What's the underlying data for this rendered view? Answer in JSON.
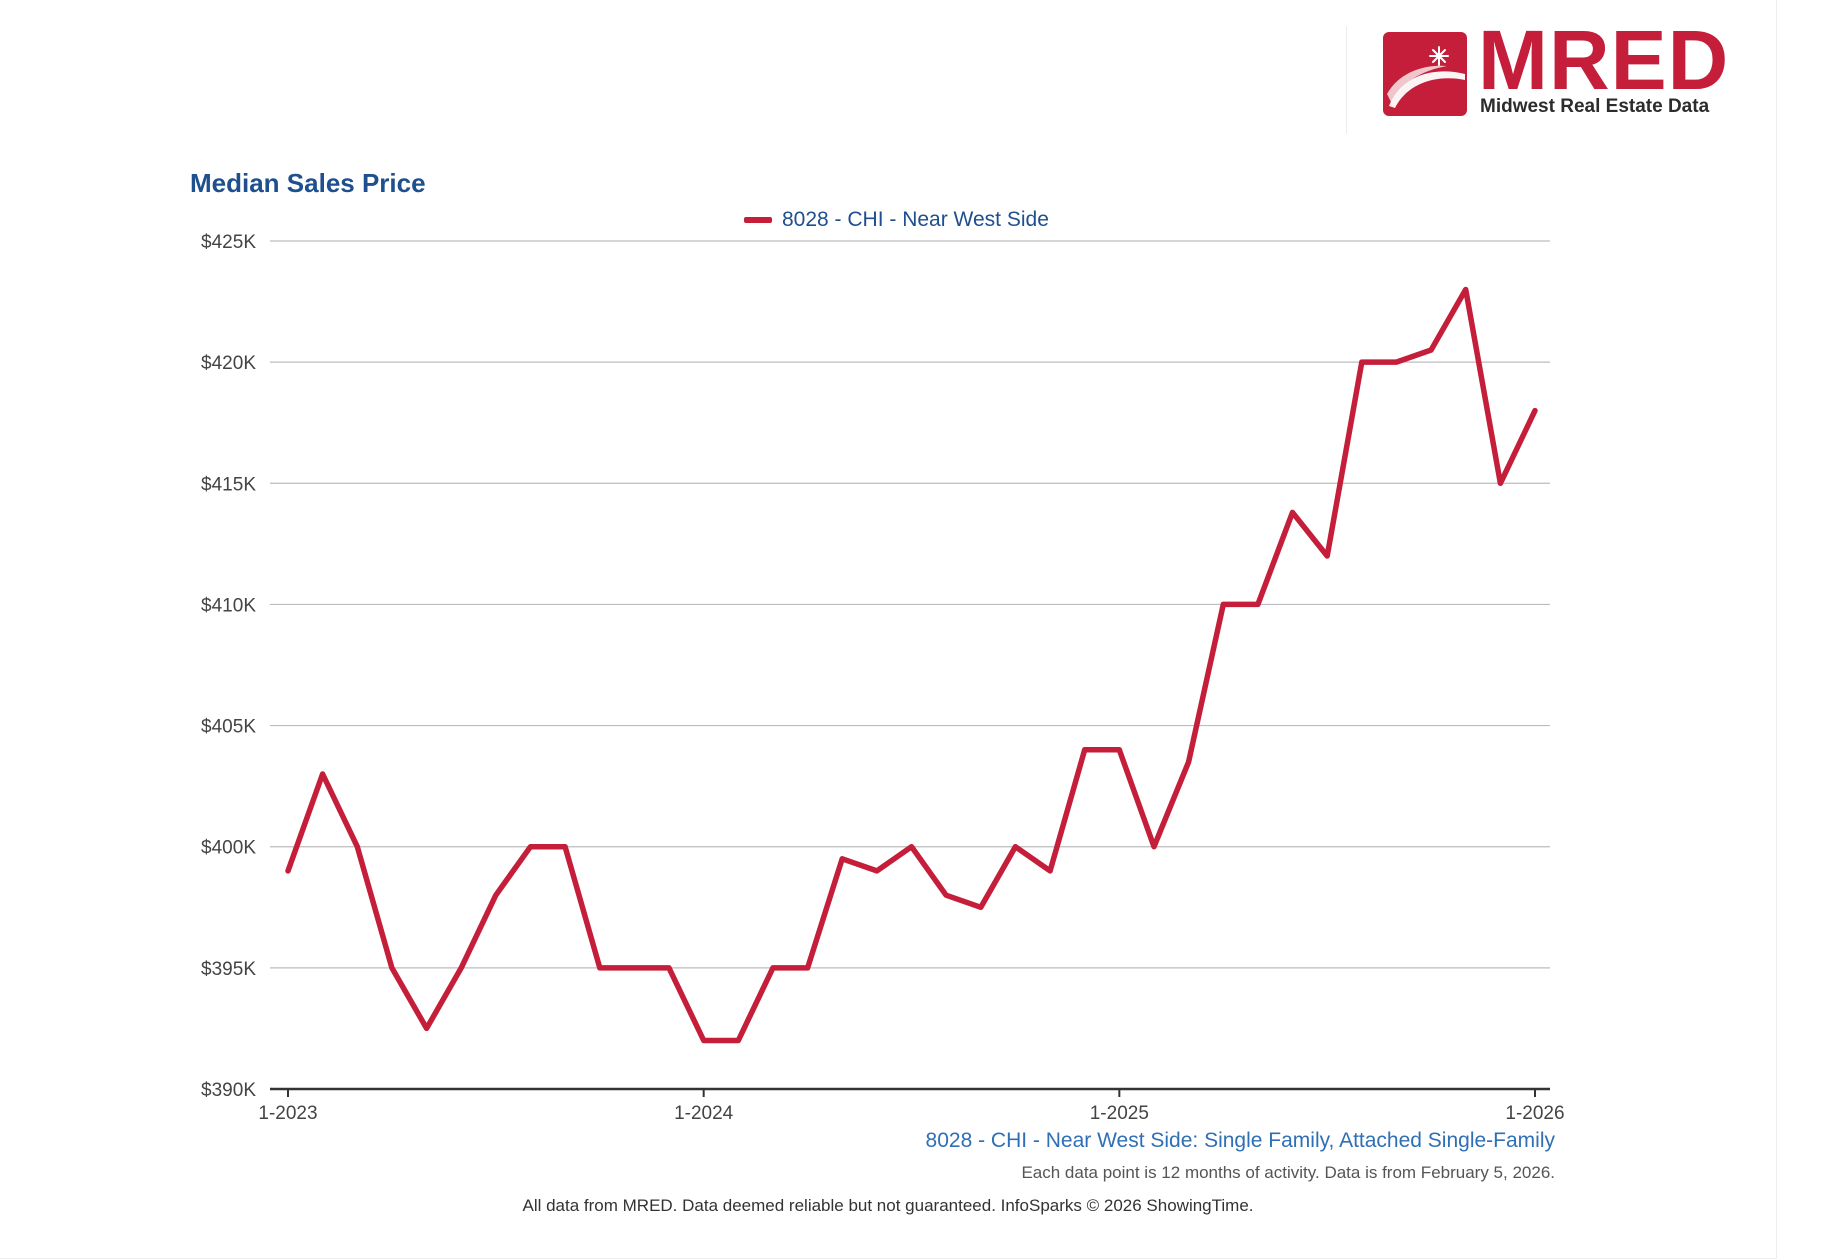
{
  "brand": {
    "logo_letters": "MRED",
    "logo_tagline": "Midwest Real Estate Data",
    "colors": {
      "brand_red": "#c41e3a",
      "title_blue": "#1e4f8e",
      "caption_blue": "#2f6fb5"
    }
  },
  "chart_data": {
    "type": "line",
    "title": "Median Sales Price",
    "xlabel": "",
    "ylabel": "",
    "legend": "top-center",
    "grid": true,
    "ylim": [
      390,
      425
    ],
    "y_ticks": [
      390,
      395,
      400,
      405,
      410,
      415,
      420,
      425
    ],
    "y_tick_labels": [
      "$390K",
      "$395K",
      "$400K",
      "$405K",
      "$410K",
      "$415K",
      "$420K",
      "$425K"
    ],
    "x_tick_labels": [
      "1-2023",
      "1-2024",
      "1-2025",
      "1-2026"
    ],
    "x": [
      "1-2023",
      "2-2023",
      "3-2023",
      "4-2023",
      "5-2023",
      "6-2023",
      "7-2023",
      "8-2023",
      "9-2023",
      "10-2023",
      "11-2023",
      "12-2023",
      "1-2024",
      "2-2024",
      "3-2024",
      "4-2024",
      "5-2024",
      "6-2024",
      "7-2024",
      "8-2024",
      "9-2024",
      "10-2024",
      "11-2024",
      "12-2024",
      "1-2025",
      "2-2025",
      "3-2025",
      "4-2025",
      "5-2025",
      "6-2025",
      "7-2025",
      "8-2025",
      "9-2025",
      "10-2025",
      "11-2025",
      "12-2025",
      "1-2026"
    ],
    "series": [
      {
        "name": "8028 - CHI - Near West Side",
        "color": "#c41e3a",
        "values": [
          399,
          403,
          400,
          395,
          392.5,
          395,
          398,
          400,
          400,
          395,
          395,
          395,
          392,
          392,
          395,
          395,
          399.5,
          399,
          400,
          398,
          397.5,
          400,
          399,
          404,
          404,
          400,
          403.5,
          410,
          410,
          413.8,
          412,
          420,
          420,
          420.5,
          423,
          415,
          418
        ]
      }
    ]
  },
  "captions": {
    "series_caption": "8028 - CHI - Near West Side: Single Family, Attached Single-Family",
    "note": "Each data point is 12 months of activity. Data is from February 5, 2026.",
    "footer": "All data from MRED. Data deemed reliable but not guaranteed. InfoSparks © 2026 ShowingTime."
  }
}
